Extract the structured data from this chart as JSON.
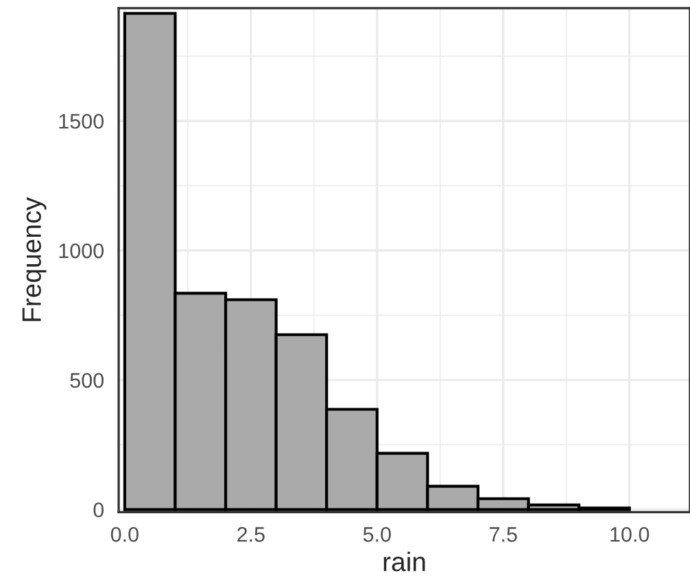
{
  "chart_data": {
    "type": "histogram",
    "xlabel": "rain",
    "ylabel": "Frequency",
    "bins": [
      0,
      1,
      2,
      3,
      4,
      5,
      6,
      7,
      8,
      9,
      10
    ],
    "values": [
      1915,
      835,
      810,
      675,
      387,
      217,
      90,
      42,
      18,
      6
    ],
    "color": "#aaaaaa",
    "xlim": [
      -0.12,
      11.2
    ],
    "ylim": [
      -10,
      1935
    ],
    "xticks": [
      {
        "value": 0,
        "label": "0.0"
      },
      {
        "value": 2.5,
        "label": "2.5"
      },
      {
        "value": 5,
        "label": "5.0"
      },
      {
        "value": 7.5,
        "label": "7.5"
      },
      {
        "value": 10,
        "label": "10.0"
      }
    ],
    "yticks": [
      0,
      500,
      1000,
      1500
    ],
    "grid": true
  }
}
